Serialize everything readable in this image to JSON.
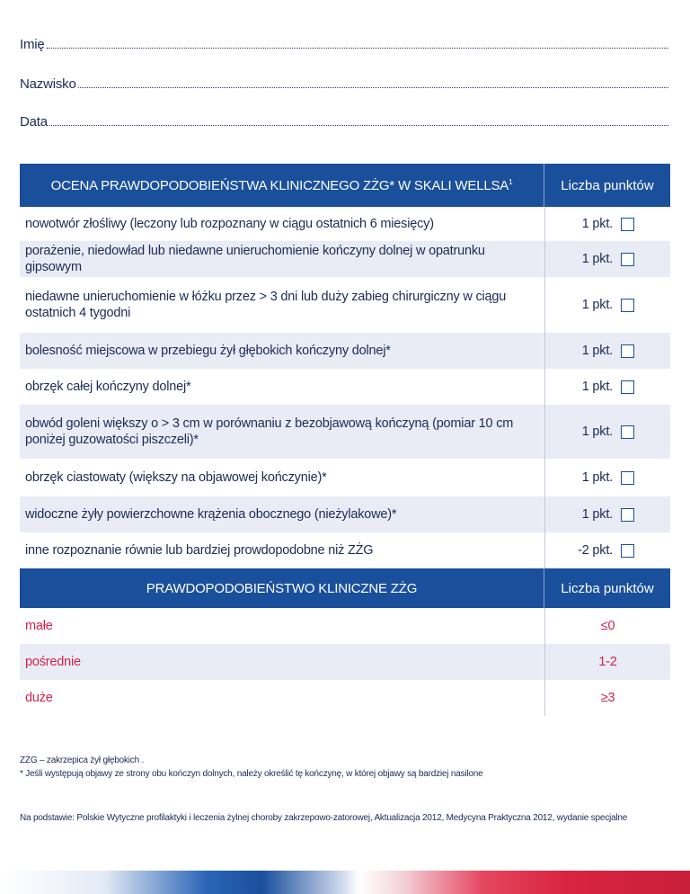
{
  "fields": {
    "first_name": "Imię",
    "last_name": "Nazwisko",
    "date": "Data"
  },
  "wells": {
    "header_title": "OCENA PRAWDOPODOBIEŃSTWA KLINICZNEGO ZŻG*  W SKALI WELLSA",
    "header_sup": "1",
    "header_points": "Liczba punktów",
    "items": [
      {
        "text": "nowotwór złośliwy (leczony lub rozpoznany w ciągu ostatnich 6 miesięcy)",
        "points": "1 pkt."
      },
      {
        "text": "porażenie, niedowład lub niedawne unieruchomienie kończyny dolnej w opatrunku gipsowym",
        "points": "1 pkt."
      },
      {
        "text": "niedawne unieruchomienie w łóżku przez > 3 dni lub duży zabieg chirurgiczny w ciągu ostatnich 4 tygodni",
        "points": "1 pkt."
      },
      {
        "text": "bolesność miejscowa w przebiegu żył głębokich kończyny dolnej*",
        "points": "1 pkt."
      },
      {
        "text": "obrzęk całej kończyny dolnej*",
        "points": "1 pkt."
      },
      {
        "text": "obwód goleni większy o > 3 cm w porównaniu z bezobjawową kończyną (pomiar 10 cm poniżej guzowatości piszczeli)*",
        "points": "1 pkt."
      },
      {
        "text": "obrzęk ciastowaty (większy na objawowej kończynie)*",
        "points": "1 pkt."
      },
      {
        "text": "widoczne żyły powierzchowne krążenia obocznego (nieżylakowe)*",
        "points": "1 pkt."
      },
      {
        "text": "inne rozpoznanie równie lub bardziej prowdopodobne niż ZŻG",
        "points": "-2 pkt."
      }
    ]
  },
  "probability": {
    "header_title": "PRAWDOPODOBIEŃSTWO KLINICZNE ZŻG",
    "header_points": "Liczba punktów",
    "rows": [
      {
        "label": "małe",
        "value": "≤0"
      },
      {
        "label": "pośrednie",
        "value": "1-2"
      },
      {
        "label": "duże",
        "value": "≥3"
      }
    ]
  },
  "footnotes": {
    "abbr": "ZŻG – zakrzepica żył głębokich .",
    "note": "* Jeśli występują objawy ze strony obu kończyn dolnych, należy określić tę kończynę, w której objawy są bardziej nasilone",
    "source": "Na podstawie: Polskie Wytyczne profilaktyki i leczenia żylnej choroby zakrzepowo-zatorowej, Aktualizacja 2012, Medycyna Praktyczna 2012, wydanie specjalne"
  },
  "colors": {
    "header_blue": "#1a4f9c",
    "row_alt": "#e9ecf4",
    "prob_red": "#d0234c",
    "text": "#1c2b57"
  }
}
